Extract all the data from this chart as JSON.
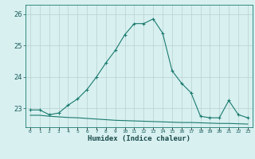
{
  "xlabel": "Humidex (Indice chaleur)",
  "x": [
    0,
    1,
    2,
    3,
    4,
    5,
    6,
    7,
    8,
    9,
    10,
    11,
    12,
    13,
    14,
    15,
    16,
    17,
    18,
    19,
    20,
    21,
    22,
    23
  ],
  "y_main": [
    22.95,
    22.95,
    22.8,
    22.85,
    23.1,
    23.3,
    23.6,
    24.0,
    24.45,
    24.85,
    25.35,
    25.7,
    25.7,
    25.85,
    25.4,
    24.2,
    23.8,
    23.5,
    22.75,
    22.7,
    22.7,
    23.25,
    22.8,
    22.7
  ],
  "y_flat": [
    22.78,
    22.78,
    22.75,
    22.73,
    22.71,
    22.7,
    22.68,
    22.66,
    22.64,
    22.62,
    22.61,
    22.6,
    22.59,
    22.58,
    22.57,
    22.56,
    22.55,
    22.55,
    22.54,
    22.53,
    22.52,
    22.52,
    22.51,
    22.5
  ],
  "line_color": "#1a7a6e",
  "bg_color": "#d8f0f0",
  "grid_color": "#b8d0d0",
  "ylim": [
    22.4,
    26.3
  ],
  "yticks": [
    23,
    24,
    25,
    26
  ],
  "xlim": [
    -0.5,
    23.5
  ],
  "xtick_labels": [
    "0",
    "1",
    "2",
    "3",
    "4",
    "5",
    "6",
    "7",
    "8",
    "9",
    "10",
    "11",
    "12",
    "13",
    "14",
    "15",
    "16",
    "17",
    "18",
    "19",
    "20",
    "21",
    "22",
    "23"
  ]
}
